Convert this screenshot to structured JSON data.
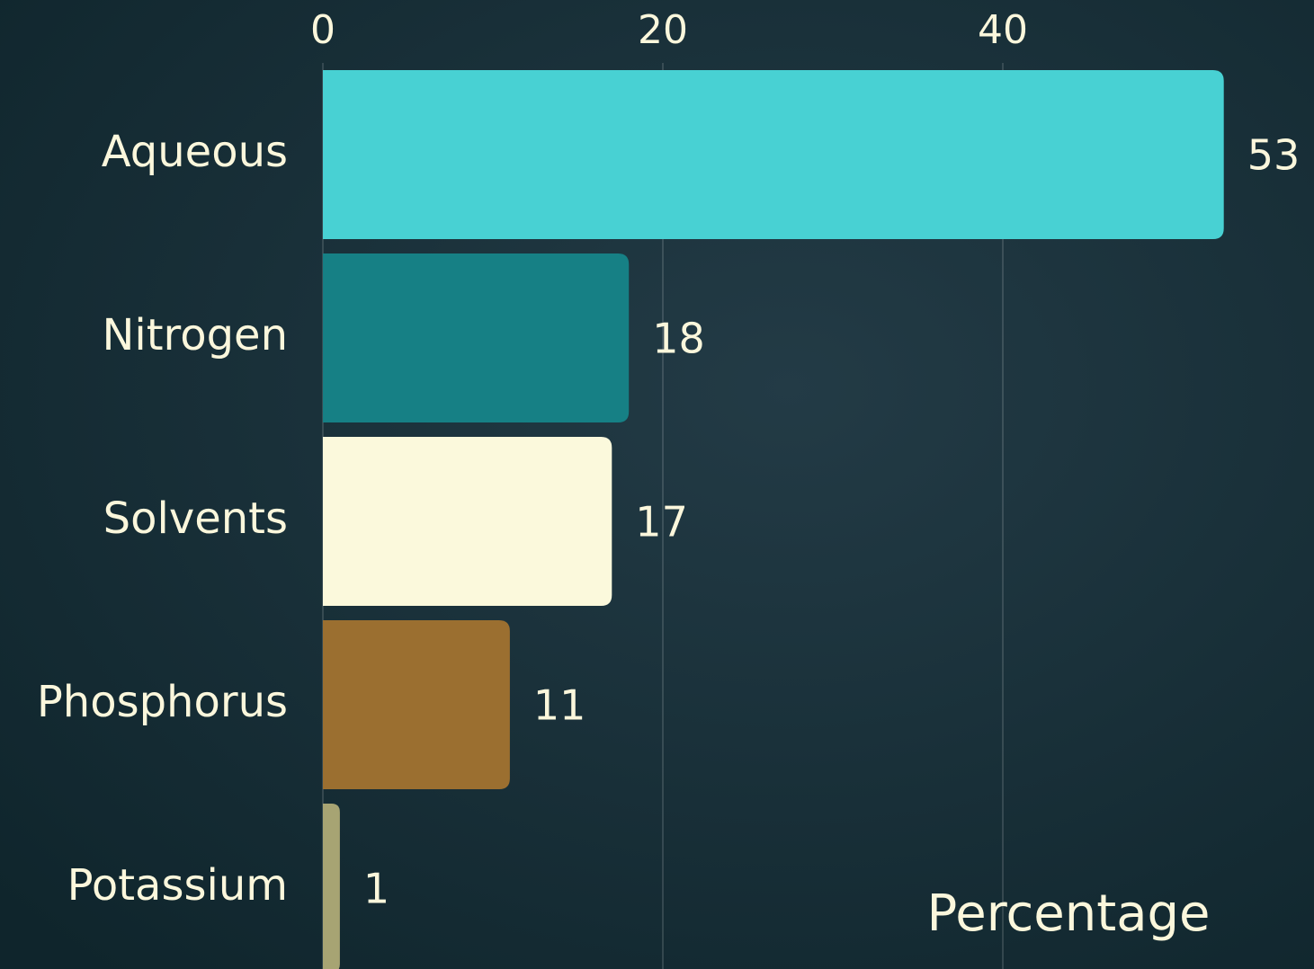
{
  "chart_data": {
    "type": "bar",
    "orientation": "horizontal",
    "categories": [
      "Aqueous",
      "Nitrogen",
      "Solvents",
      "Phosphorus",
      "Potassium"
    ],
    "values": [
      53,
      18,
      17,
      11,
      1
    ],
    "colors": [
      "#48d1d3",
      "#168085",
      "#fbf9dc",
      "#9b6f30",
      "#a7a473"
    ],
    "xlabel": "Percentage",
    "xlim": [
      0,
      55
    ],
    "xticks": [
      0,
      20,
      40
    ],
    "grid": true
  }
}
